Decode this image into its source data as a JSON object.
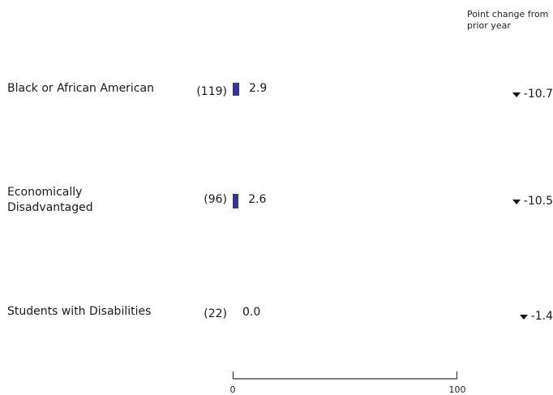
{
  "header": {
    "line1": "Point change from",
    "line2": "prior year"
  },
  "chart_data": {
    "type": "bar",
    "orientation": "horizontal",
    "categories": [
      {
        "label_lines": [
          "Black or African American"
        ],
        "count": "(119)",
        "value": 2.9,
        "value_label": "2.9",
        "change": -10.7,
        "change_label": "-10.7"
      },
      {
        "label_lines": [
          "Economically",
          "Disadvantaged"
        ],
        "count": "(96)",
        "value": 2.6,
        "value_label": "2.6",
        "change": -10.5,
        "change_label": "-10.5"
      },
      {
        "label_lines": [
          "Students with Disabilities"
        ],
        "count": "(22)",
        "value": 0.0,
        "value_label": "0.0",
        "change": -1.4,
        "change_label": "-1.4"
      }
    ],
    "xlim": [
      0,
      100
    ],
    "x_ticks": [
      "0",
      "100"
    ],
    "colors": {
      "bar": "#33379a",
      "change_arrow": "#111111"
    }
  }
}
